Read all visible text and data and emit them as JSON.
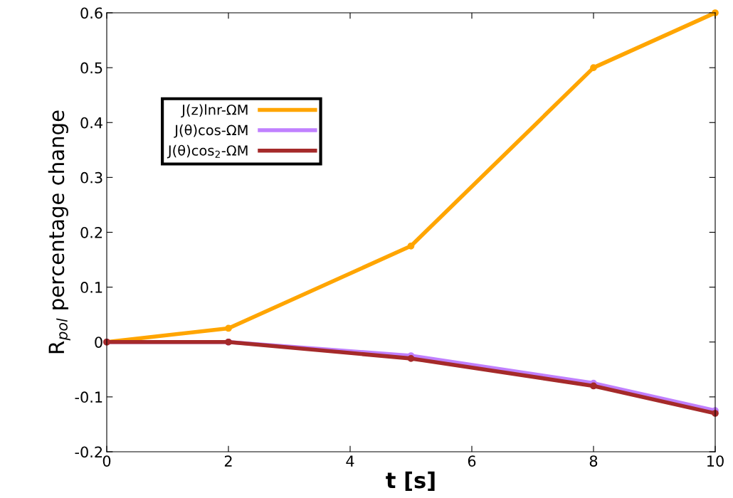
{
  "chart_data": {
    "type": "line",
    "xlabel": "t [s]",
    "ylabel": "R$_{pol}$ percentage change",
    "x": [
      0,
      2,
      5,
      8,
      10
    ],
    "series": [
      {
        "name": "J(z)lnr-ΩM",
        "color": "#ffa500",
        "values": [
          0,
          0.025,
          0.175,
          0.5,
          0.6
        ]
      },
      {
        "name": "J(θ)cos-ΩM",
        "color": "#c080ff",
        "values": [
          0,
          0,
          -0.025,
          -0.075,
          -0.125
        ]
      },
      {
        "name": "J(θ)cos$_{2}$-ΩM",
        "color": "#a52a2a",
        "values": [
          0,
          0,
          -0.03,
          -0.08,
          -0.13
        ]
      }
    ],
    "xlim": [
      0,
      10
    ],
    "xticks": [
      0,
      2,
      4,
      6,
      8,
      10
    ],
    "ylim": [
      -0.2,
      0.6
    ],
    "yticks": [
      -0.2,
      -0.1,
      0,
      0.1,
      0.2,
      0.3,
      0.4,
      0.5,
      0.6
    ],
    "marker": "circle",
    "line_style": "solid",
    "legend": "top left",
    "grid": false
  }
}
